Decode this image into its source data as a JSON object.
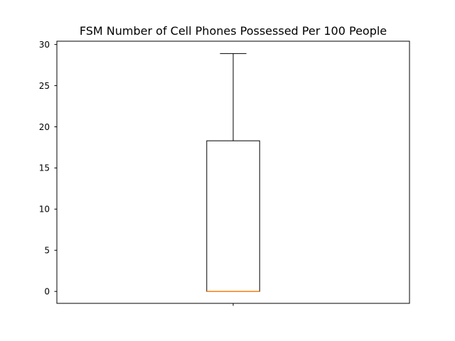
{
  "chart_data": {
    "type": "box",
    "title": "FSM Number of Cell Phones Possessed Per 100 People",
    "xlabel": "",
    "ylabel": "",
    "ylim": [
      -1.45,
      30.4
    ],
    "y_ticks": [
      0,
      5,
      10,
      15,
      20,
      25,
      30
    ],
    "grid": false,
    "series": [
      {
        "whisker_low": 0,
        "q1": 0,
        "median": 0,
        "q3": 18.3,
        "whisker_high": 28.9
      }
    ],
    "colors": {
      "box": "#000000",
      "median": "#ff7f0e"
    }
  }
}
